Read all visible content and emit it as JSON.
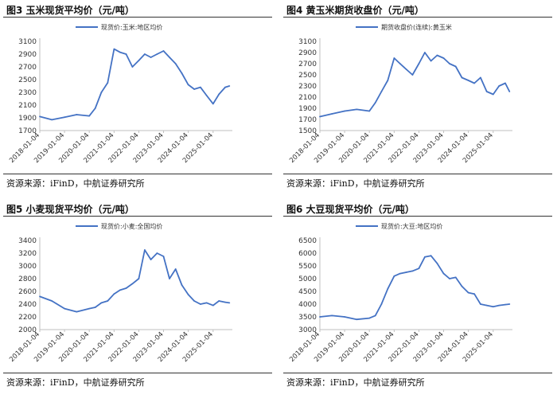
{
  "colors": {
    "series": "#4472c4",
    "axis": "#bfbfbf",
    "text": "#333333",
    "rule": "#333333"
  },
  "panels": [
    {
      "title": "图3 玉米现货平均价（元/吨）",
      "source": "资源来源：iFinD，中航证券研究所"
    },
    {
      "title": "图4 黄玉米期货收盘价（元/吨）",
      "source": "资源来源：iFinD，中航证券研究所"
    },
    {
      "title": "图5 小麦现货平均价（元/吨）",
      "source": "资源来源：iFinD，中航证券研究所"
    },
    {
      "title": "图6 大豆现货平均价（元/吨）",
      "source": "资源来源：iFinD，中航证券研究所"
    }
  ],
  "chart_data": [
    {
      "type": "line",
      "title": "图3 玉米现货平均价（元/吨）",
      "legend": "top-center",
      "series": [
        {
          "name": "现货价:玉米:地区均价",
          "x": [
            "2018-01-04",
            "2018-07-01",
            "2019-01-04",
            "2019-07-01",
            "2020-01-04",
            "2020-04-01",
            "2020-07-01",
            "2020-10-01",
            "2021-01-04",
            "2021-04-01",
            "2021-07-01",
            "2021-10-01",
            "2022-01-04",
            "2022-04-01",
            "2022-07-01",
            "2022-10-01",
            "2023-01-04",
            "2023-04-01",
            "2023-07-01",
            "2023-10-01",
            "2024-01-04",
            "2024-04-01",
            "2024-07-01",
            "2024-10-01",
            "2025-01-04",
            "2025-04-01",
            "2025-07-01",
            "2025-09-01"
          ],
          "values": [
            1920,
            1870,
            1910,
            1950,
            1930,
            2050,
            2300,
            2450,
            2980,
            2930,
            2900,
            2700,
            2800,
            2900,
            2850,
            2900,
            2950,
            2850,
            2750,
            2600,
            2420,
            2350,
            2380,
            2250,
            2120,
            2270,
            2380,
            2400
          ]
        }
      ],
      "x_ticks": [
        "2018-01-04",
        "2019-01-04",
        "2020-01-04",
        "2021-01-04",
        "2022-01-04",
        "2023-01-04",
        "2024-01-04",
        "2025-01-04"
      ],
      "y_ticks": [
        1700,
        1900,
        2100,
        2300,
        2500,
        2700,
        2900,
        3100
      ],
      "ylim": [
        1700,
        3100
      ]
    },
    {
      "type": "line",
      "title": "图4 黄玉米期货收盘价（元/吨）",
      "legend": "top-center",
      "series": [
        {
          "name": "期货收盘价(连续):黄玉米",
          "x": [
            "2018-01-04",
            "2018-07-01",
            "2019-01-04",
            "2019-07-01",
            "2020-01-04",
            "2020-04-01",
            "2020-07-01",
            "2020-10-01",
            "2021-01-04",
            "2021-04-01",
            "2021-07-01",
            "2021-10-01",
            "2022-01-04",
            "2022-04-01",
            "2022-07-01",
            "2022-10-01",
            "2023-01-04",
            "2023-04-01",
            "2023-07-01",
            "2023-10-01",
            "2024-01-04",
            "2024-04-01",
            "2024-07-01",
            "2024-10-01",
            "2025-01-04",
            "2025-04-01",
            "2025-07-01",
            "2025-09-01"
          ],
          "values": [
            1750,
            1800,
            1850,
            1880,
            1850,
            2000,
            2200,
            2400,
            2800,
            2700,
            2600,
            2500,
            2700,
            2900,
            2750,
            2850,
            2800,
            2700,
            2650,
            2450,
            2400,
            2350,
            2450,
            2200,
            2150,
            2300,
            2350,
            2200
          ]
        }
      ],
      "x_ticks": [
        "2018-01-04",
        "2019-01-04",
        "2020-01-04",
        "2021-01-04",
        "2022-01-04",
        "2023-01-04",
        "2024-01-04",
        "2025-01-04"
      ],
      "y_ticks": [
        1500,
        1700,
        1900,
        2100,
        2300,
        2500,
        2700,
        2900,
        3100
      ],
      "ylim": [
        1500,
        3100
      ]
    },
    {
      "type": "line",
      "title": "图5 小麦现货平均价（元/吨）",
      "legend": "top-center",
      "series": [
        {
          "name": "现货价:小麦:全国均价",
          "x": [
            "2018-01-04",
            "2018-07-01",
            "2019-01-04",
            "2019-07-01",
            "2020-01-04",
            "2020-04-01",
            "2020-07-01",
            "2020-10-01",
            "2021-01-04",
            "2021-04-01",
            "2021-07-01",
            "2021-10-01",
            "2022-01-04",
            "2022-04-01",
            "2022-07-01",
            "2022-10-01",
            "2023-01-04",
            "2023-04-01",
            "2023-07-01",
            "2023-10-01",
            "2024-01-04",
            "2024-04-01",
            "2024-07-01",
            "2024-10-01",
            "2025-01-04",
            "2025-04-01",
            "2025-07-01",
            "2025-09-01"
          ],
          "values": [
            2520,
            2450,
            2330,
            2280,
            2330,
            2350,
            2420,
            2450,
            2560,
            2620,
            2650,
            2720,
            2800,
            3250,
            3100,
            3200,
            3150,
            2800,
            2950,
            2700,
            2550,
            2450,
            2400,
            2420,
            2380,
            2450,
            2430,
            2420
          ]
        }
      ],
      "x_ticks": [
        "2018-01-04",
        "2019-01-04",
        "2020-01-04",
        "2021-01-04",
        "2022-01-04",
        "2023-01-04",
        "2024-01-04",
        "2025-01-04"
      ],
      "y_ticks": [
        2000,
        2200,
        2400,
        2600,
        2800,
        3000,
        3200,
        3400
      ],
      "ylim": [
        2000,
        3400
      ]
    },
    {
      "type": "line",
      "title": "图6 大豆现货平均价（元/吨）",
      "legend": "top-center",
      "series": [
        {
          "name": "现货价:大豆:地区均价",
          "x": [
            "2018-01-04",
            "2018-07-01",
            "2019-01-04",
            "2019-07-01",
            "2020-01-04",
            "2020-04-01",
            "2020-07-01",
            "2020-10-01",
            "2021-01-04",
            "2021-04-01",
            "2021-07-01",
            "2021-10-01",
            "2022-01-04",
            "2022-04-01",
            "2022-07-01",
            "2022-10-01",
            "2023-01-04",
            "2023-04-01",
            "2023-07-01",
            "2023-10-01",
            "2024-01-04",
            "2024-04-01",
            "2024-07-01",
            "2024-10-01",
            "2025-01-04",
            "2025-04-01",
            "2025-07-01",
            "2025-09-01"
          ],
          "values": [
            3500,
            3550,
            3500,
            3400,
            3450,
            3550,
            4000,
            4600,
            5100,
            5200,
            5250,
            5300,
            5400,
            5850,
            5900,
            5600,
            5200,
            5000,
            5050,
            4700,
            4450,
            4400,
            4000,
            3950,
            3900,
            3950,
            3980,
            4000
          ]
        }
      ],
      "x_ticks": [
        "2018-01-04",
        "2019-01-04",
        "2020-01-04",
        "2021-01-04",
        "2022-01-04",
        "2023-01-04",
        "2024-01-04",
        "2025-01-04"
      ],
      "y_ticks": [
        3000,
        3500,
        4000,
        4500,
        5000,
        5500,
        6000,
        6500
      ],
      "ylim": [
        3000,
        6500
      ]
    }
  ]
}
